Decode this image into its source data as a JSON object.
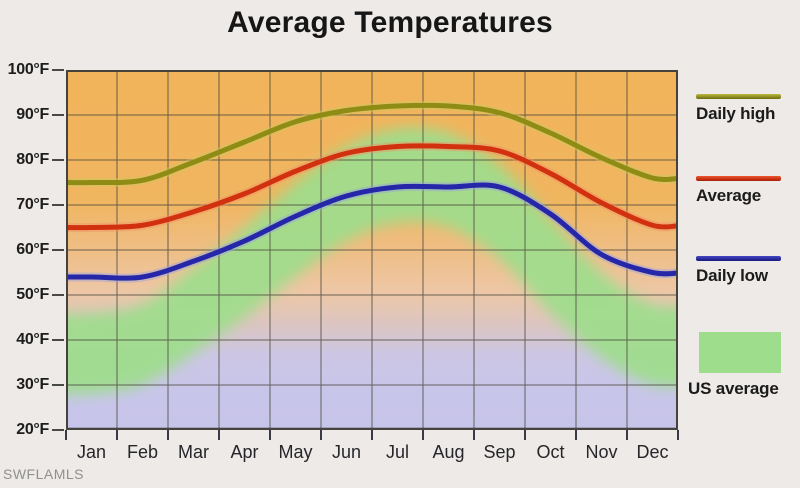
{
  "title": "Average Temperatures",
  "watermark": "SWFLAMLS",
  "legend": {
    "daily_high": "Daily high",
    "average": "Average",
    "daily_low": "Daily low",
    "us_average": "US average"
  },
  "style": {
    "page_bg": "#edeae7",
    "grid_color": "#4c4a3f",
    "border_color": "#45433b",
    "axis_line_color": "#31323f",
    "plot_bg_stops": [
      [
        0,
        "#f2b45a"
      ],
      [
        0.36,
        "#f0b55f"
      ],
      [
        0.5,
        "#efbe85"
      ],
      [
        0.62,
        "#edc7a7"
      ],
      [
        0.7,
        "#ddc5bf"
      ],
      [
        0.79,
        "#ccc6e4"
      ],
      [
        0.9,
        "#c8c5ea"
      ],
      [
        1,
        "#c7c4ea"
      ]
    ],
    "swatch_high": [
      "#bcbb3e",
      "#6f6c0e"
    ],
    "swatch_avg": [
      "#f0552f",
      "#a81e06"
    ],
    "swatch_low": [
      "#4648c4",
      "#17197e"
    ]
  },
  "chart_data": {
    "type": "line",
    "title": "Average Temperatures",
    "categories": [
      "Jan",
      "Feb",
      "Mar",
      "Apr",
      "May",
      "Jun",
      "Jul",
      "Aug",
      "Sep",
      "Oct",
      "Nov",
      "Dec"
    ],
    "unit": "°F",
    "ylim": [
      20,
      100
    ],
    "ytick_step": 10,
    "ytick_labels": [
      "100°F",
      "90°F",
      "80°F",
      "70°F",
      "60°F",
      "50°F",
      "40°F",
      "30°F",
      "20°F"
    ],
    "grid": true,
    "legend_position": "right",
    "series": [
      {
        "name": "Daily high",
        "color": "#8f8c15",
        "halo": "#ccc75e",
        "values": [
          75,
          75.5,
          79.5,
          84,
          88.5,
          91,
          92,
          92,
          90.5,
          86,
          80.5,
          76
        ]
      },
      {
        "name": "Average",
        "color": "#d23110",
        "halo": "#f29066",
        "values": [
          65,
          65.5,
          68.5,
          72.5,
          77.5,
          81.5,
          83,
          83,
          82,
          77,
          70.5,
          65.5
        ]
      },
      {
        "name": "Daily low",
        "color": "#2527a8",
        "halo": "#96a0e2",
        "values": [
          54,
          54,
          57.5,
          62,
          67.5,
          72,
          74,
          74,
          74,
          68,
          59,
          55
        ]
      }
    ],
    "band": {
      "name": "US average",
      "color": "#9edd8c",
      "high": [
        46,
        48,
        56,
        65,
        75,
        83,
        87,
        86,
        79,
        67,
        55,
        48
      ],
      "low": [
        28,
        30,
        37,
        45,
        54,
        62,
        66,
        65,
        58,
        46,
        36,
        30
      ]
    }
  }
}
